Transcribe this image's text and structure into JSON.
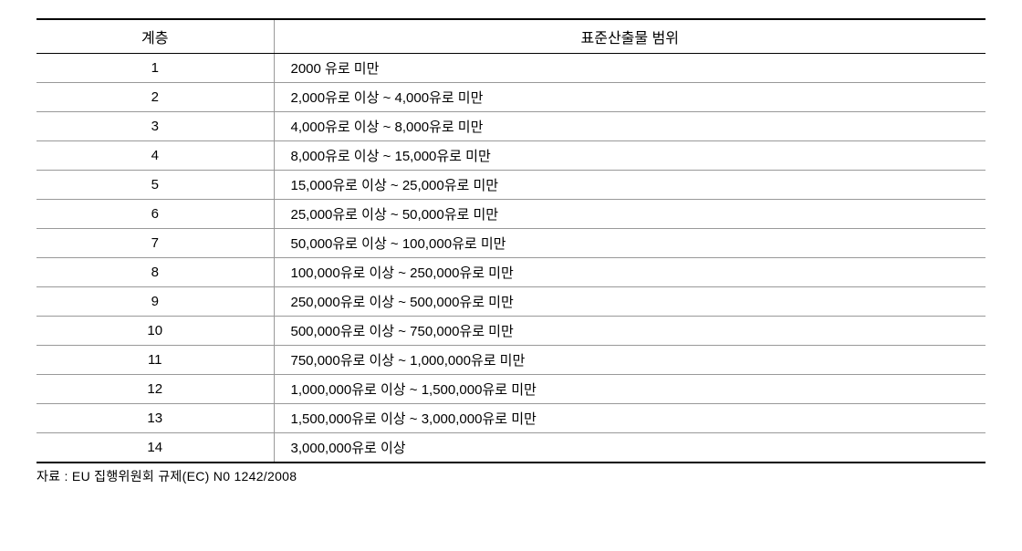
{
  "table": {
    "columns": [
      "계층",
      "표준산출물 범위"
    ],
    "rows": [
      {
        "tier": "1",
        "range": "2000 유로 미만"
      },
      {
        "tier": "2",
        "range": "2,000유로 이상 ~ 4,000유로 미만"
      },
      {
        "tier": "3",
        "range": "4,000유로 이상 ~ 8,000유로 미만"
      },
      {
        "tier": "4",
        "range": "8,000유로 이상 ~ 15,000유로 미만"
      },
      {
        "tier": "5",
        "range": "15,000유로 이상 ~ 25,000유로 미만"
      },
      {
        "tier": "6",
        "range": "25,000유로 이상 ~ 50,000유로 미만"
      },
      {
        "tier": "7",
        "range": "50,000유로 이상 ~ 100,000유로 미만"
      },
      {
        "tier": "8",
        "range": "100,000유로 이상 ~ 250,000유로 미만"
      },
      {
        "tier": "9",
        "range": "250,000유로 이상 ~ 500,000유로 미만"
      },
      {
        "tier": "10",
        "range": "500,000유로 이상 ~ 750,000유로 미만"
      },
      {
        "tier": "11",
        "range": "750,000유로 이상 ~ 1,000,000유로 미만"
      },
      {
        "tier": "12",
        "range": "1,000,000유로 이상 ~ 1,500,000유로 미만"
      },
      {
        "tier": "13",
        "range": "1,500,000유로 이상 ~ 3,000,000유로 미만"
      },
      {
        "tier": "14",
        "range": "3,000,000유로 이상"
      }
    ]
  },
  "source_note": "자료 : EU 집행위원회 규제(EC) N0 1242/2008"
}
